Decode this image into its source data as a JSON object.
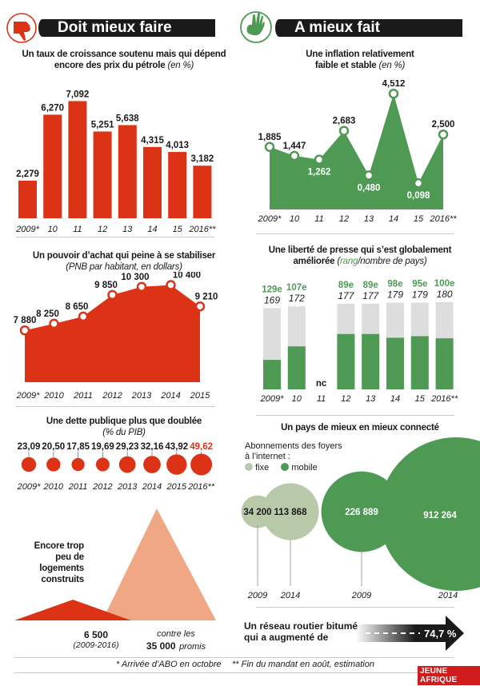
{
  "colors": {
    "red": "#dc3316",
    "green": "#4e9a54",
    "light_green": "#b7c9a8",
    "gray_bar": "#dddddd",
    "salmon": "#f0a884",
    "dark": "#1a1a1a"
  },
  "header_left": {
    "title": "Doit mieux faire",
    "icon": "thumbs-down-icon"
  },
  "header_right": {
    "title": "A mieux fait",
    "icon": "ok-hand-icon"
  },
  "chart_data": [
    {
      "id": "growth",
      "type": "bar",
      "title": "Un taux de croissance soutenu mais qui dépend encore des prix du pétrole",
      "title_unit": "(en %)",
      "categories": [
        "2009*",
        "10",
        "11",
        "12",
        "13",
        "14",
        "15",
        "2016**"
      ],
      "values": [
        2.279,
        6.27,
        7.092,
        5.251,
        5.638,
        4.315,
        4.013,
        3.182
      ],
      "labels": [
        "2,279",
        "6,270",
        "7,092",
        "5,251",
        "5,638",
        "4,315",
        "4,013",
        "3,182"
      ],
      "ylim": [
        0,
        7.5
      ]
    },
    {
      "id": "inflation",
      "type": "area",
      "title": "Une inflation relativement faible et stable",
      "title_unit": "(en %)",
      "categories": [
        "2009*",
        "10",
        "11",
        "12",
        "13",
        "14",
        "15",
        "2016**"
      ],
      "values": [
        1.885,
        1.447,
        1.262,
        2.683,
        0.48,
        4.512,
        0.098,
        2.5
      ],
      "labels": [
        "1,885",
        "1,447",
        "1,262",
        "2,683",
        "0,480",
        "4,512",
        "0,098",
        "2,500"
      ],
      "ylim": [
        -1.2,
        4.6
      ]
    },
    {
      "id": "gnp",
      "type": "area",
      "title": "Un pouvoir d’achat qui peine à se stabiliser",
      "title_unit": "(PNB par habitant, en dollars)",
      "categories": [
        "2009*",
        "2010",
        "2011",
        "2012",
        "2013",
        "2014",
        "2015"
      ],
      "values": [
        7880,
        8250,
        8650,
        9850,
        10300,
        10400,
        9210
      ],
      "labels": [
        "7 880",
        "8 250",
        "8 650",
        "9 850",
        "10 300",
        "10 400",
        "9 210"
      ],
      "ylim": [
        5000,
        10600
      ]
    },
    {
      "id": "press",
      "type": "bar",
      "title": "Une liberté de presse qui s’est globalement améliorée",
      "title_unit_rank": "rang",
      "title_unit_rest": "/nombre de pays)",
      "categories": [
        "2009*",
        "10",
        "11",
        "12",
        "13",
        "14",
        "15",
        "2016**"
      ],
      "ranks": [
        129,
        107,
        null,
        89,
        89,
        98,
        95,
        100
      ],
      "rank_labels": [
        "129e",
        "107e",
        "",
        "89e",
        "89e",
        "98e",
        "95e",
        "100e"
      ],
      "totals": [
        169,
        172,
        null,
        177,
        177,
        179,
        179,
        180
      ],
      "total_labels": [
        "169",
        "172",
        "",
        "177",
        "177",
        "179",
        "179",
        "180"
      ],
      "missing_label": "nc"
    },
    {
      "id": "debt",
      "type": "scatter",
      "title": "Une dette publique plus que doublée",
      "title_unit": "(% du PIB)",
      "categories": [
        "2009*",
        "2010",
        "2011",
        "2012",
        "2013",
        "2014",
        "2015",
        "2016**"
      ],
      "values": [
        23.09,
        20.5,
        17.85,
        19.69,
        29.23,
        32.16,
        43.92,
        49.62
      ],
      "labels": [
        "23,09",
        "20,50",
        "17,85",
        "19,69",
        "29,23",
        "32,16",
        "43,92",
        "49,62"
      ],
      "highlight_last": true
    },
    {
      "id": "internet",
      "type": "scatter",
      "title": "Un pays de mieux en mieux connecté",
      "legend_title": "Abonnements des foyers à l’internet :",
      "legend": [
        "fixe",
        "mobile"
      ],
      "series": [
        {
          "name": "fixe",
          "x": [
            "2009",
            "2014"
          ],
          "values": [
            34200,
            113868
          ],
          "labels": [
            "34 200",
            "113 868"
          ]
        },
        {
          "name": "mobile",
          "x": [
            "2009",
            "2014"
          ],
          "values": [
            226889,
            912264
          ],
          "labels": [
            "226 889",
            "912 264"
          ]
        }
      ]
    },
    {
      "id": "housing",
      "type": "bar",
      "title": "Encore trop peu de logements construits",
      "categories": [
        "construits",
        "promis"
      ],
      "values": [
        6500,
        35000
      ],
      "built_label": "6 500",
      "built_period": "(2009-2016)",
      "promised_prefix": "contre les",
      "promised_label": "35 000",
      "promised_suffix": "promis"
    }
  ],
  "roads": {
    "text_line1": "Un réseau routier bitumé",
    "text_line2": "qui a augmenté de",
    "value_label": "74,7 %",
    "value": 74.7
  },
  "footnotes": {
    "note1": "* Arrivée d’ABO en  octobre",
    "note2": "** Fin du mandat en août, estimation"
  },
  "brand": "JEUNE AFRIQUE"
}
